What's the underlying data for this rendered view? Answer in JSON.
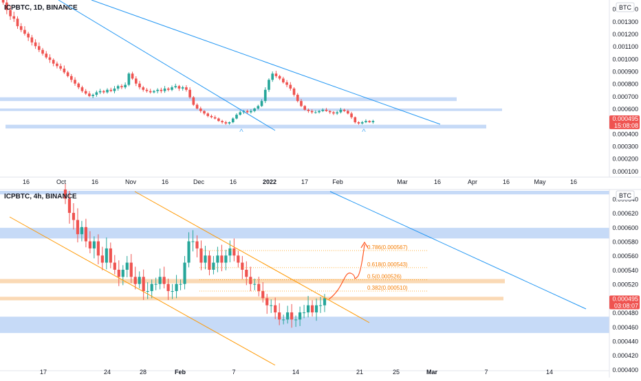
{
  "chart_data": [
    {
      "type": "candlestick",
      "title": "ICPBTC, 1D, BINANCE",
      "currency_badge": "BTC",
      "y_ticks": [
        0.0001,
        0.0002,
        0.0003,
        0.0004,
        0.0005,
        0.0006,
        0.0007,
        0.0008,
        0.0009,
        0.001,
        0.0011,
        0.0012,
        0.0013,
        0.0014
      ],
      "y_tick_labels": [
        "0.000100",
        "0.000200",
        "0.000300",
        "0.000400",
        "0.000500",
        "0.000600",
        "0.000700",
        "0.000800",
        "0.000900",
        "0.001000",
        "0.001100",
        "0.001200",
        "0.001300",
        "0.001400"
      ],
      "x_tick_labels": [
        "16",
        "Oct",
        "16",
        "Nov",
        "16",
        "Dec",
        "16",
        "2022",
        "17",
        "Feb",
        "Mar",
        "16",
        "Apr",
        "16",
        "May",
        "16"
      ],
      "bold_x_labels": [
        "2022"
      ],
      "ylim": [
        5e-05,
        0.00147
      ],
      "last_price": {
        "label": "0.000495",
        "countdown": "15:08:08",
        "value": 0.000495
      },
      "markers": [
        "^",
        "^"
      ],
      "zones_y": [
        [
          0.00066,
          0.00069
        ],
        [
          0.00058,
          0.0006
        ],
        [
          0.00044,
          0.00047
        ]
      ],
      "trendlines": 2,
      "series_close": [
        0.00145,
        0.00139,
        0.00134,
        0.00132,
        0.00126,
        0.00123,
        0.0012,
        0.00117,
        0.00113,
        0.0011,
        0.00107,
        0.00104,
        0.00101,
        0.00099,
        0.00096,
        0.00094,
        0.00092,
        0.00089,
        0.00086,
        0.00083,
        0.0008,
        0.00077,
        0.00074,
        0.00072,
        0.0007,
        0.00071,
        0.00073,
        0.00074,
        0.00073,
        0.00075,
        0.00074,
        0.00076,
        0.00078,
        0.00077,
        0.00079,
        0.00088,
        0.00084,
        0.0008,
        0.00077,
        0.00075,
        0.00074,
        0.00073,
        0.00074,
        0.00075,
        0.00074,
        0.00076,
        0.00075,
        0.00077,
        0.00078,
        0.00076,
        0.00077,
        0.00075,
        0.00069,
        0.00063,
        0.0006,
        0.00058,
        0.00056,
        0.00054,
        0.00053,
        0.00052,
        0.0005,
        0.00049,
        0.00048,
        0.00049,
        0.00052,
        0.00055,
        0.00057,
        0.00058,
        0.00057,
        0.00058,
        0.0006,
        0.00062,
        0.00066,
        0.00075,
        0.00083,
        0.00088,
        0.00086,
        0.00084,
        0.00081,
        0.00079,
        0.00076,
        0.00071,
        0.00066,
        0.00062,
        0.00059,
        0.00058,
        0.00057,
        0.00057,
        0.00058,
        0.00059,
        0.00058,
        0.00057,
        0.00056,
        0.00057,
        0.00059,
        0.00058,
        0.00056,
        0.00053,
        0.00049,
        0.00048,
        0.00049,
        0.0005,
        0.00049,
        0.0005
      ]
    },
    {
      "type": "candlestick",
      "title": "ICPBTC, 4h, BINANCE",
      "currency_badge": "BTC",
      "y_ticks": [
        0.0004,
        0.00042,
        0.00044,
        0.00046,
        0.00048,
        0.0005,
        0.00052,
        0.00054,
        0.00056,
        0.00058,
        0.0006,
        0.00062,
        0.00064
      ],
      "y_tick_labels": [
        "0.000400",
        "0.000420",
        "0.000440",
        "0.000460",
        "0.000480",
        "0.000500",
        "0.000520",
        "0.000540",
        "0.000560",
        "0.000580",
        "0.000600",
        "0.000620",
        "0.000640"
      ],
      "x_tick_labels": [
        "17",
        "24",
        "28",
        "Feb",
        "7",
        "14",
        "21",
        "25",
        "Mar",
        "7",
        "14"
      ],
      "bold_x_labels": [
        "Feb",
        "Mar"
      ],
      "ylim": [
        0.000398,
        0.000651
      ],
      "last_price": {
        "label": "0.000495",
        "countdown": "03:08:07",
        "value": 0.000495
      },
      "fib_levels": [
        {
          "label": "0.786(0.000567)",
          "value": 0.000567
        },
        {
          "label": "0.618(0.000543)",
          "value": 0.000543
        },
        {
          "label": "0.5(0.000526)",
          "value": 0.000526
        },
        {
          "label": "0.382(0.000510)",
          "value": 0.00051
        }
      ],
      "zones_y": [
        [
          0.000584,
          0.000599
        ],
        [
          0.000521,
          0.000527
        ],
        [
          0.000497,
          0.000502
        ],
        [
          0.000451,
          0.000474
        ],
        [
          0.000646,
          0.000651
        ]
      ],
      "series_close": [
        0.00064,
        0.00062,
        0.00061,
        0.00059,
        0.0006,
        0.00058,
        0.00057,
        0.00058,
        0.00056,
        0.00055,
        0.00057,
        0.00055,
        0.00054,
        0.00053,
        0.00054,
        0.00055,
        0.00053,
        0.00052,
        0.00053,
        0.00051,
        0.00051,
        0.00052,
        0.00052,
        0.00053,
        0.00052,
        0.00051,
        0.00051,
        0.00052,
        0.00052,
        0.00055,
        0.00058,
        0.00058,
        0.00057,
        0.00055,
        0.00056,
        0.00054,
        0.00055,
        0.00056,
        0.00055,
        0.00056,
        0.00057,
        0.00056,
        0.00055,
        0.00054,
        0.00053,
        0.00052,
        0.00052,
        0.00051,
        0.0005,
        0.00049,
        0.00049,
        0.00048,
        0.00047,
        0.00047,
        0.00048,
        0.00047,
        0.00047,
        0.00048,
        0.00048,
        0.00049,
        0.00048,
        0.00049,
        0.00049,
        0.0005
      ]
    }
  ]
}
